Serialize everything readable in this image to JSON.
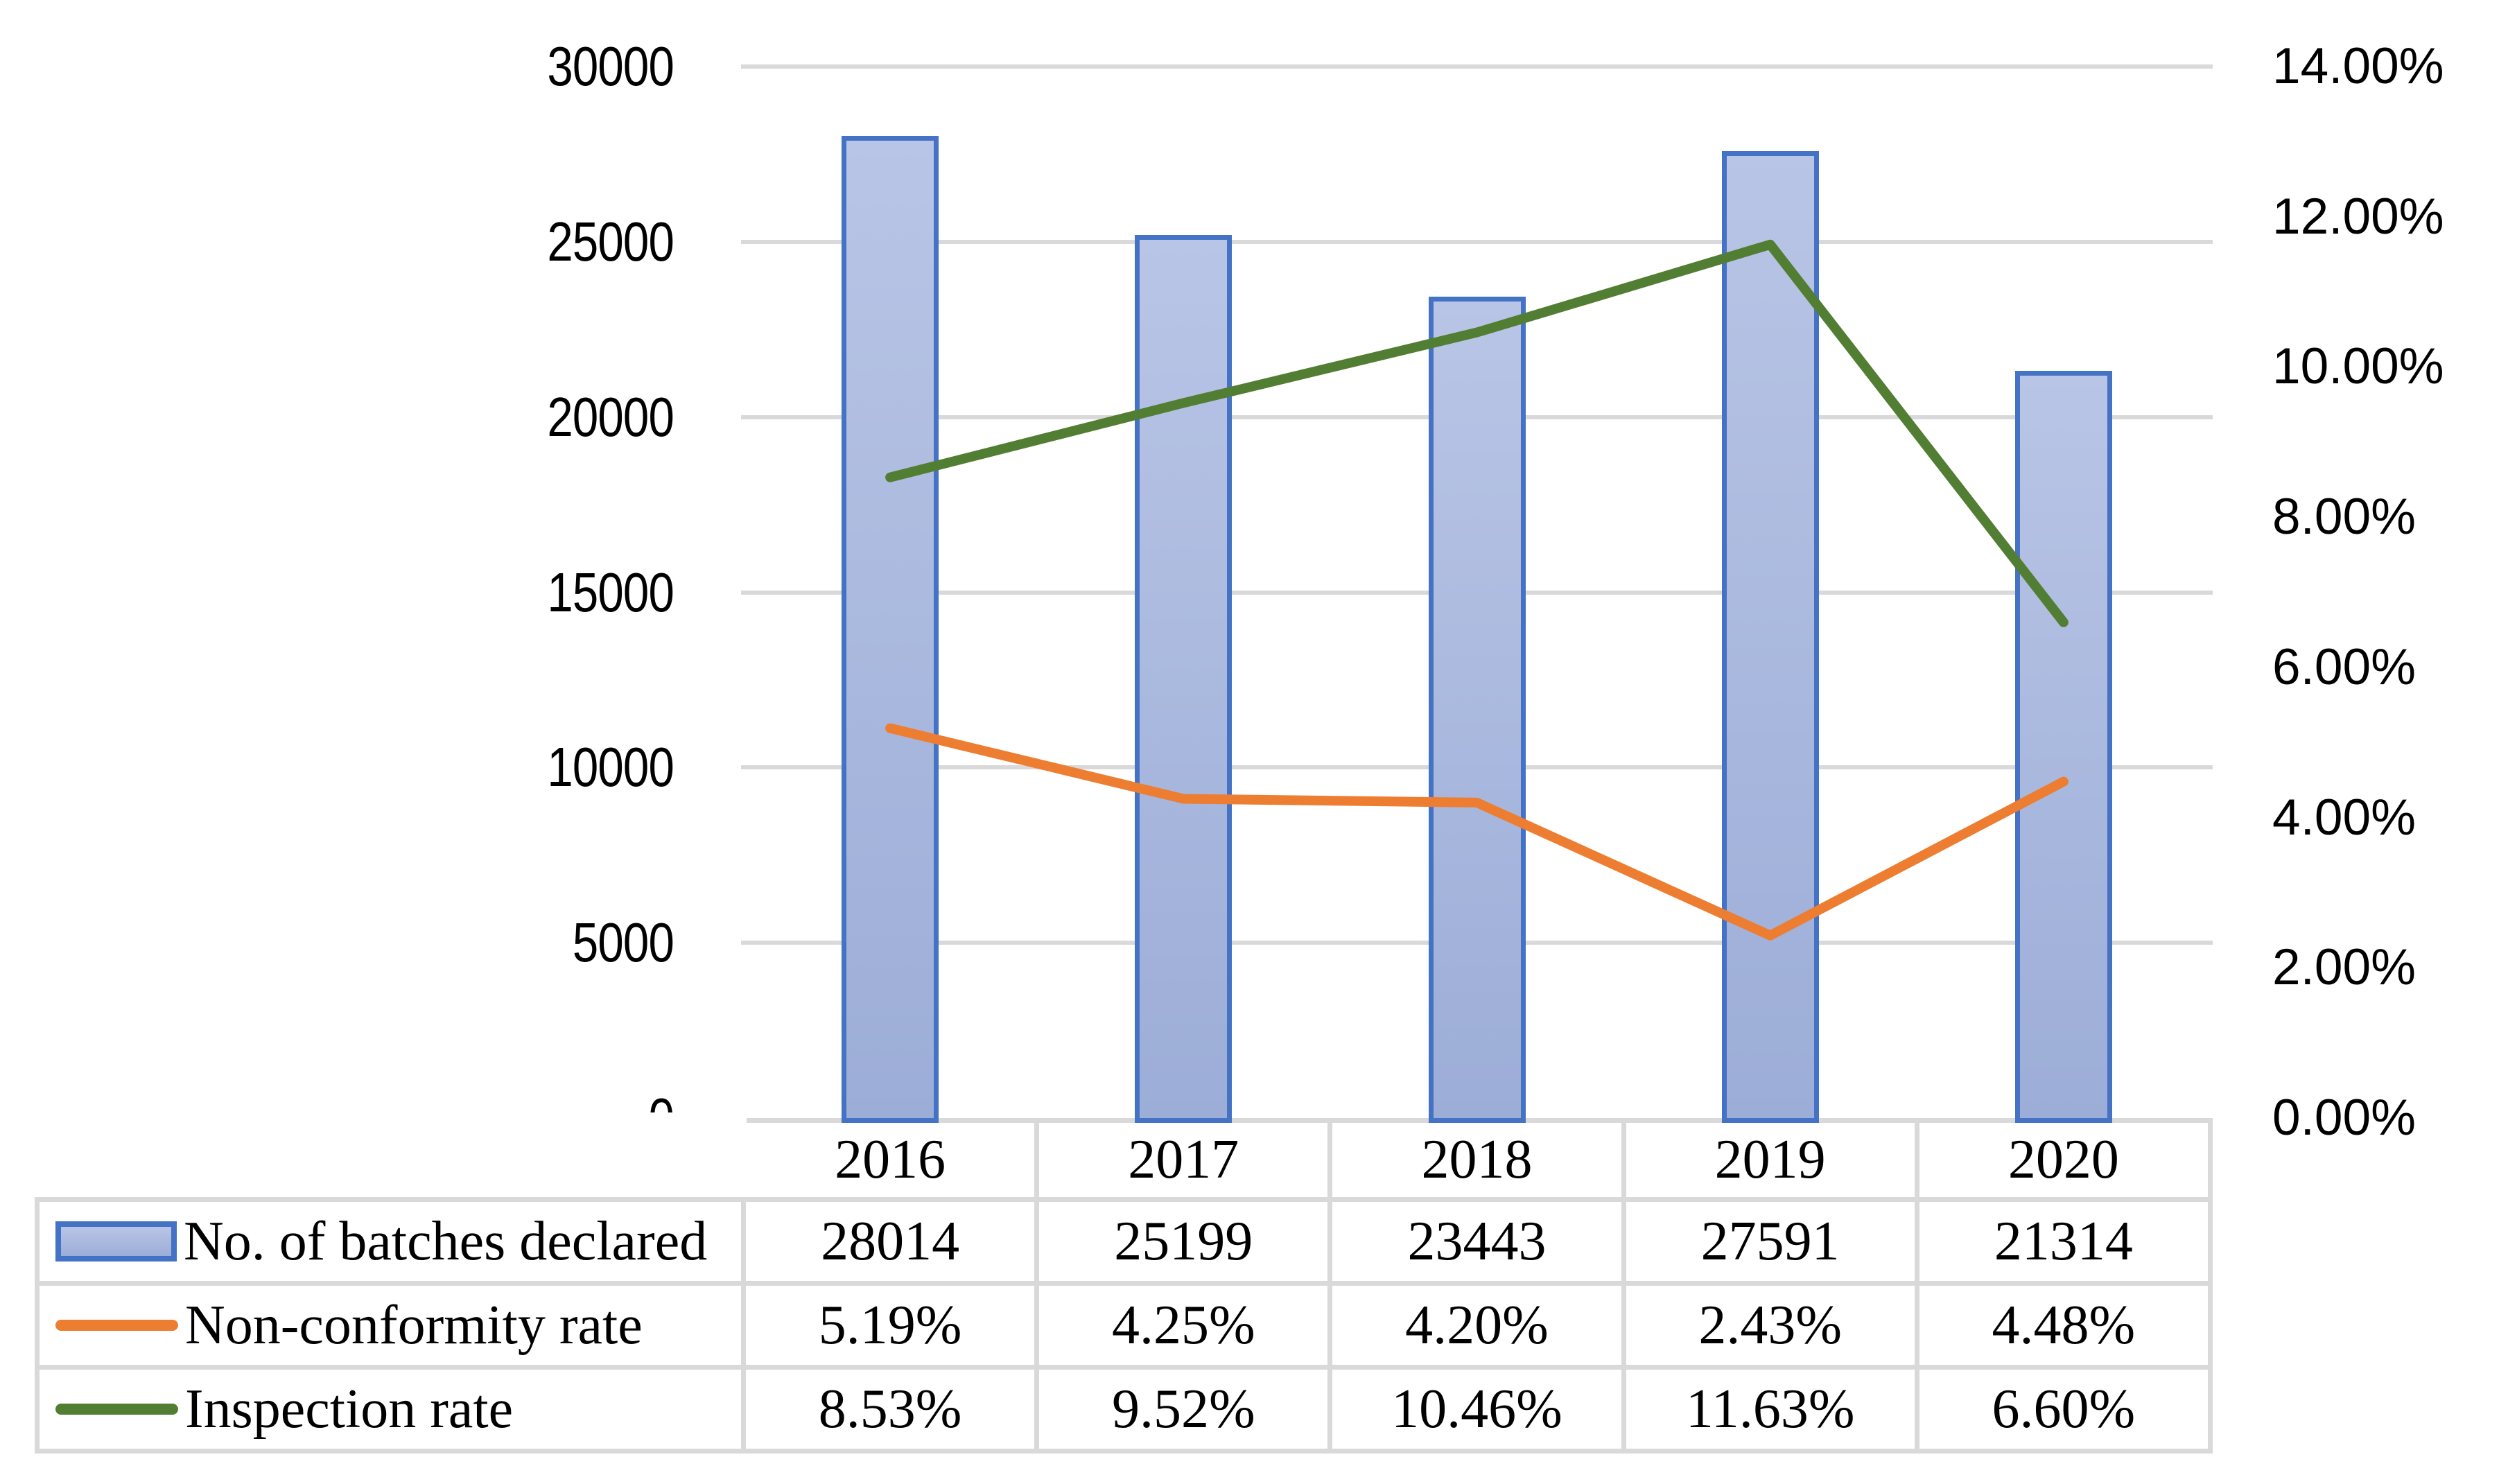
{
  "chart_data": {
    "type": "combo-bar-line",
    "title": "",
    "categories": [
      "2016",
      "2017",
      "2018",
      "2019",
      "2020"
    ],
    "series": [
      {
        "name": "No. of batches declared",
        "type": "bar",
        "axis": "left",
        "values": [
          28014,
          25199,
          23443,
          27591,
          21314
        ],
        "labels": [
          "28014",
          "25199",
          "23443",
          "27591",
          "21314"
        ],
        "border_color": "#4472c4",
        "fill_top": "#b9c5e6",
        "fill_bottom": "#9cadd7"
      },
      {
        "name": "Non-conformity rate",
        "type": "line",
        "axis": "right",
        "values": [
          5.19,
          4.25,
          4.2,
          2.43,
          4.48
        ],
        "labels": [
          "5.19%",
          "4.25%",
          "4.20%",
          "2.43%",
          "4.48%"
        ],
        "color": "#ed7d31"
      },
      {
        "name": "Inspection rate",
        "type": "line",
        "axis": "right",
        "values": [
          8.53,
          9.52,
          10.46,
          11.63,
          6.6
        ],
        "labels": [
          "8.53%",
          "9.52%",
          "10.46%",
          "11.63%",
          "6.60%"
        ],
        "color": "#527e33"
      }
    ],
    "left_axis": {
      "min": 0,
      "max": 30000,
      "step": 5000,
      "tick_labels": [
        "0",
        "5000",
        "10000",
        "15000",
        "20000",
        "25000",
        "30000"
      ]
    },
    "right_axis": {
      "min": 0,
      "max": 14,
      "step": 2,
      "tick_labels": [
        "0.00%",
        "2.00%",
        "4.00%",
        "6.00%",
        "8.00%",
        "10.00%",
        "12.00%",
        "14.00%"
      ]
    },
    "grid": "horizontal gridlines at left-axis ticks only",
    "gridline_color": "#d9d9d9",
    "table_border_color": "#d9d9d9",
    "legend_position": "data-table left column",
    "text_color": "#000000",
    "background": "#ffffff"
  }
}
